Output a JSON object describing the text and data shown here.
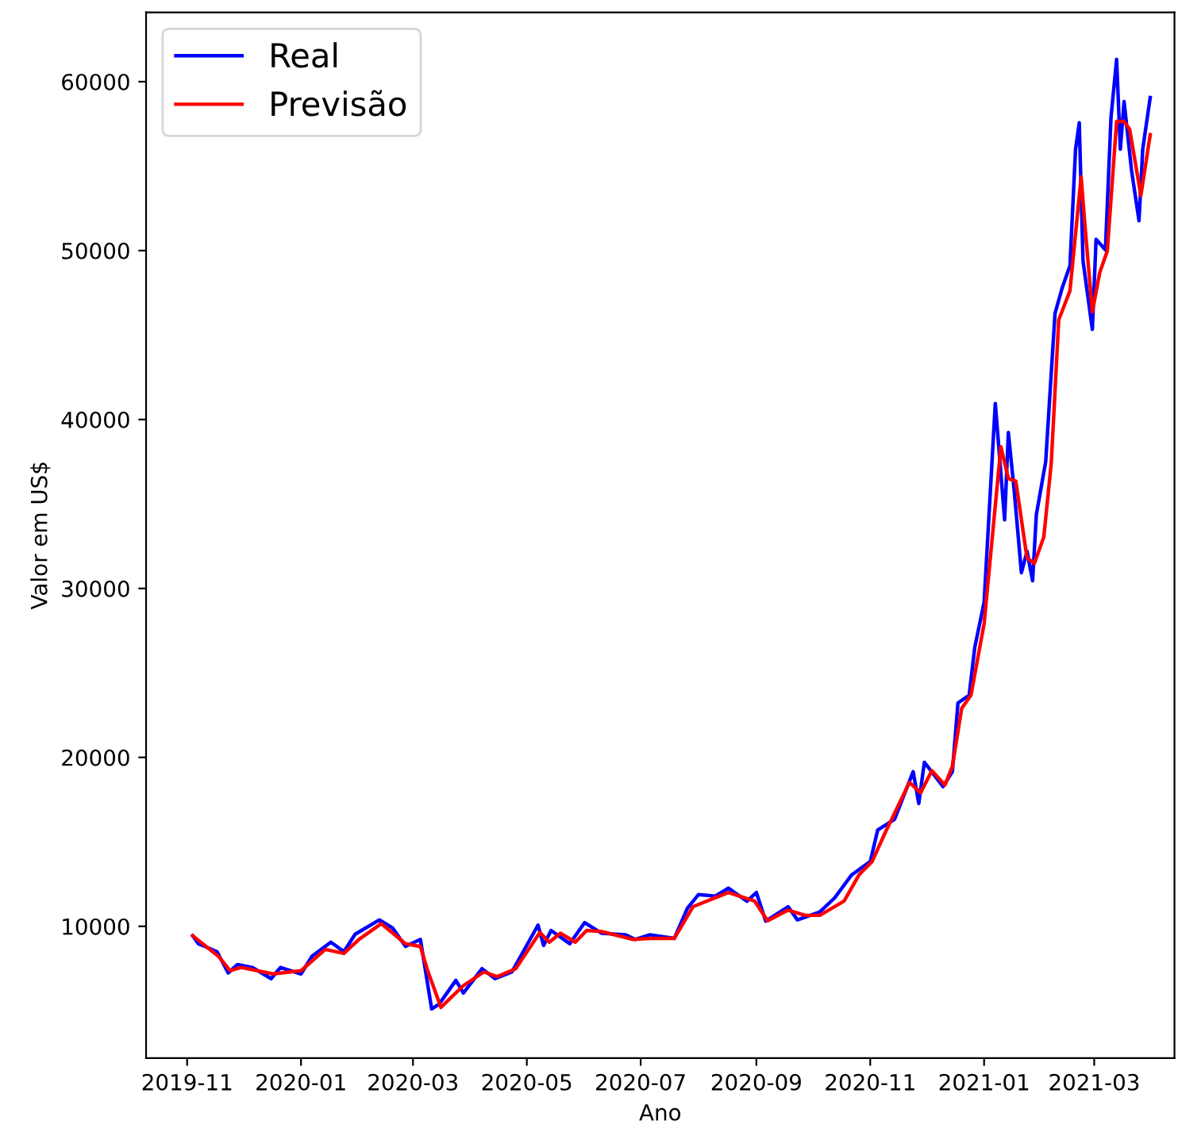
{
  "chart_data": {
    "type": "line",
    "xlabel": "Ano",
    "ylabel": "Valor em US$",
    "xlim": [
      "2019-10-10",
      "2021-04-13"
    ],
    "ylim": [
      2200,
      64100
    ],
    "xticks": [
      "2019-11",
      "2020-01",
      "2020-03",
      "2020-05",
      "2020-07",
      "2020-09",
      "2020-11",
      "2021-01",
      "2021-03"
    ],
    "yticks": [
      10000,
      20000,
      30000,
      40000,
      50000,
      60000
    ],
    "grid": false,
    "legend": "top left",
    "line_style": "solid",
    "series": [
      {
        "name": "Real",
        "color": "#0000ff",
        "x": [
          "2019-11-04",
          "2019-11-07",
          "2019-11-17",
          "2019-11-23",
          "2019-11-28",
          "2019-12-06",
          "2019-12-16",
          "2019-12-21",
          "2020-01-01",
          "2020-01-07",
          "2020-01-17",
          "2020-01-24",
          "2020-01-30",
          "2020-02-12",
          "2020-02-19",
          "2020-02-26",
          "2020-03-05",
          "2020-03-11",
          "2020-03-15",
          "2020-03-24",
          "2020-03-28",
          "2020-04-07",
          "2020-04-14",
          "2020-04-23",
          "2020-05-07",
          "2020-05-10",
          "2020-05-14",
          "2020-05-24",
          "2020-06-01",
          "2020-06-10",
          "2020-06-23",
          "2020-06-28",
          "2020-07-06",
          "2020-07-19",
          "2020-07-26",
          "2020-08-01",
          "2020-08-10",
          "2020-08-17",
          "2020-08-27",
          "2020-09-01",
          "2020-09-06",
          "2020-09-18",
          "2020-09-23",
          "2020-10-05",
          "2020-10-13",
          "2020-10-22",
          "2020-11-01",
          "2020-11-05",
          "2020-11-14",
          "2020-11-24",
          "2020-11-27",
          "2020-11-30",
          "2020-12-10",
          "2020-12-15",
          "2020-12-18",
          "2020-12-24",
          "2020-12-27",
          "2021-01-01",
          "2021-01-07",
          "2021-01-12",
          "2021-01-14",
          "2021-01-17",
          "2021-01-21",
          "2021-01-24",
          "2021-01-27",
          "2021-01-29",
          "2021-02-03",
          "2021-02-08",
          "2021-02-12",
          "2021-02-16",
          "2021-02-19",
          "2021-02-21",
          "2021-02-23",
          "2021-02-28",
          "2021-03-02",
          "2021-03-07",
          "2021-03-10",
          "2021-03-13",
          "2021-03-15",
          "2021-03-17",
          "2021-03-21",
          "2021-03-25",
          "2021-03-27",
          "2021-03-31"
        ],
        "values": [
          9440,
          8970,
          8500,
          7240,
          7740,
          7560,
          6900,
          7560,
          7180,
          8240,
          9060,
          8500,
          9530,
          10380,
          9910,
          8810,
          9220,
          5110,
          5390,
          6800,
          6050,
          7490,
          6900,
          7300,
          10070,
          8870,
          9750,
          8970,
          10220,
          9590,
          9500,
          9220,
          9500,
          9280,
          11060,
          11880,
          11790,
          12260,
          11480,
          12000,
          10310,
          11160,
          10380,
          10850,
          11690,
          13040,
          13830,
          15700,
          16330,
          19150,
          17270,
          19710,
          18270,
          19150,
          23220,
          23690,
          26510,
          29170,
          40950,
          34060,
          39230,
          35940,
          30930,
          32200,
          30460,
          34370,
          37500,
          46280,
          47850,
          49100,
          56000,
          57570,
          49400,
          45340,
          50670,
          50040,
          57880,
          61320,
          56000,
          58820,
          54750,
          51770,
          56000,
          59060
        ]
      },
      {
        "name": "Previsão",
        "color": "#ff0000",
        "x": [
          "2019-11-04",
          "2019-11-18",
          "2019-11-24",
          "2019-11-30",
          "2019-12-17",
          "2020-01-01",
          "2020-01-14",
          "2020-01-24",
          "2020-02-01",
          "2020-02-13",
          "2020-02-26",
          "2020-03-05",
          "2020-03-09",
          "2020-03-16",
          "2020-03-28",
          "2020-04-08",
          "2020-04-15",
          "2020-04-25",
          "2020-05-08",
          "2020-05-13",
          "2020-05-19",
          "2020-05-27",
          "2020-06-02",
          "2020-06-10",
          "2020-06-27",
          "2020-07-06",
          "2020-07-19",
          "2020-07-29",
          "2020-08-17",
          "2020-08-31",
          "2020-09-07",
          "2020-09-18",
          "2020-09-27",
          "2020-10-05",
          "2020-10-18",
          "2020-10-26",
          "2020-11-02",
          "2020-11-09",
          "2020-11-22",
          "2020-11-28",
          "2020-12-04",
          "2020-12-11",
          "2020-12-15",
          "2020-12-20",
          "2020-12-25",
          "2021-01-01",
          "2021-01-10",
          "2021-01-14",
          "2021-01-18",
          "2021-01-24",
          "2021-01-28",
          "2021-02-02",
          "2021-02-06",
          "2021-02-10",
          "2021-02-16",
          "2021-02-22",
          "2021-02-24",
          "2021-02-28",
          "2021-03-04",
          "2021-03-08",
          "2021-03-13",
          "2021-03-17",
          "2021-03-20",
          "2021-03-26",
          "2021-03-31"
        ],
        "values": [
          9440,
          8200,
          7380,
          7560,
          7180,
          7370,
          8630,
          8400,
          9220,
          10160,
          8970,
          8800,
          7330,
          5200,
          6490,
          7300,
          7020,
          7490,
          9630,
          9060,
          9590,
          9060,
          9750,
          9690,
          9220,
          9280,
          9280,
          11160,
          12000,
          11500,
          10330,
          10960,
          10650,
          10650,
          11500,
          13050,
          13830,
          15540,
          18520,
          17900,
          19220,
          18360,
          19470,
          22900,
          23690,
          27910,
          38390,
          36510,
          36350,
          31800,
          31490,
          33050,
          37440,
          45900,
          47620,
          54360,
          51540,
          46370,
          48720,
          49970,
          57650,
          57650,
          57180,
          53260,
          56860
        ]
      }
    ]
  }
}
